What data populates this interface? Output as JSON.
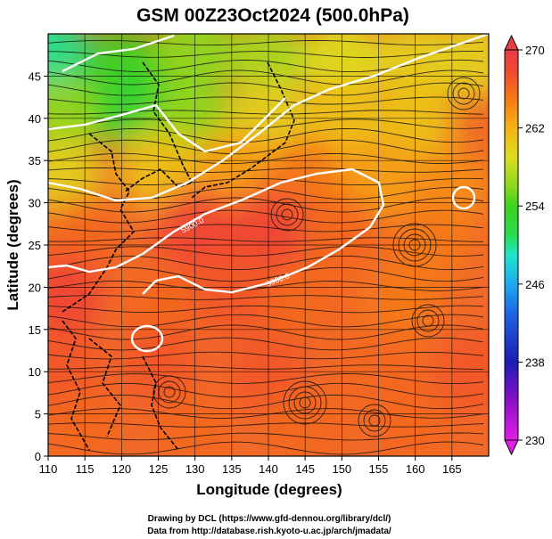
{
  "chart_data": {
    "type": "heatmap",
    "title": "GSM 00Z23Oct2024 (500.0hPa)",
    "xlabel": "Longitude (degrees)",
    "ylabel": "Latitude  (degrees)",
    "xlim": [
      110,
      170
    ],
    "ylim": [
      0,
      50
    ],
    "x_ticks": [
      110,
      115,
      120,
      125,
      130,
      135,
      140,
      145,
      150,
      155,
      160,
      165
    ],
    "y_ticks": [
      0,
      5,
      10,
      15,
      20,
      25,
      30,
      35,
      40,
      45
    ],
    "grid": true,
    "colorbar": {
      "ticks": [
        230,
        238,
        246,
        254,
        262,
        270
      ],
      "range": [
        230,
        270
      ],
      "stops": [
        {
          "v": 230,
          "c": "#e21ee6"
        },
        {
          "v": 234,
          "c": "#8c10c8"
        },
        {
          "v": 238,
          "c": "#1c1cb4"
        },
        {
          "v": 243,
          "c": "#1e64e6"
        },
        {
          "v": 246,
          "c": "#1eaaf0"
        },
        {
          "v": 249,
          "c": "#1ee6c8"
        },
        {
          "v": 251,
          "c": "#28dc50"
        },
        {
          "v": 254,
          "c": "#3cd21e"
        },
        {
          "v": 256,
          "c": "#8cd81e"
        },
        {
          "v": 259,
          "c": "#dcdc1e"
        },
        {
          "v": 262,
          "c": "#f5b414"
        },
        {
          "v": 265,
          "c": "#f57814"
        },
        {
          "v": 268,
          "c": "#f04632"
        },
        {
          "v": 270,
          "c": "#e63c46"
        }
      ]
    },
    "field_samples": [
      {
        "lon": 110,
        "lat": 48,
        "value": 250
      },
      {
        "lon": 120,
        "lat": 46,
        "value": 254
      },
      {
        "lon": 130,
        "lat": 48,
        "value": 256
      },
      {
        "lon": 140,
        "lat": 47,
        "value": 257
      },
      {
        "lon": 150,
        "lat": 47,
        "value": 259
      },
      {
        "lon": 160,
        "lat": 47,
        "value": 260
      },
      {
        "lon": 168,
        "lat": 47,
        "value": 260
      },
      {
        "lon": 112,
        "lat": 40,
        "value": 256
      },
      {
        "lon": 122,
        "lat": 41,
        "value": 253
      },
      {
        "lon": 130,
        "lat": 40,
        "value": 256
      },
      {
        "lon": 140,
        "lat": 40,
        "value": 260
      },
      {
        "lon": 150,
        "lat": 40,
        "value": 261
      },
      {
        "lon": 160,
        "lat": 40,
        "value": 261
      },
      {
        "lon": 112,
        "lat": 33,
        "value": 260
      },
      {
        "lon": 125,
        "lat": 34,
        "value": 261
      },
      {
        "lon": 135,
        "lat": 34,
        "value": 263
      },
      {
        "lon": 145,
        "lat": 33,
        "value": 265
      },
      {
        "lon": 155,
        "lat": 33,
        "value": 263
      },
      {
        "lon": 165,
        "lat": 32,
        "value": 264
      },
      {
        "lon": 115,
        "lat": 26,
        "value": 266
      },
      {
        "lon": 130,
        "lat": 27,
        "value": 268
      },
      {
        "lon": 140,
        "lat": 27,
        "value": 268
      },
      {
        "lon": 150,
        "lat": 26,
        "value": 266
      },
      {
        "lon": 162,
        "lat": 25,
        "value": 265
      },
      {
        "lon": 112,
        "lat": 19,
        "value": 268
      },
      {
        "lon": 125,
        "lat": 18,
        "value": 266
      },
      {
        "lon": 135,
        "lat": 19,
        "value": 267
      },
      {
        "lon": 145,
        "lat": 18,
        "value": 266
      },
      {
        "lon": 158,
        "lat": 18,
        "value": 265
      },
      {
        "lon": 112,
        "lat": 10,
        "value": 267
      },
      {
        "lon": 125,
        "lat": 11,
        "value": 267
      },
      {
        "lon": 140,
        "lat": 10,
        "value": 267
      },
      {
        "lon": 155,
        "lat": 10,
        "value": 266
      },
      {
        "lon": 168,
        "lat": 10,
        "value": 267
      },
      {
        "lon": 115,
        "lat": 3,
        "value": 266
      },
      {
        "lon": 130,
        "lat": 3,
        "value": 266
      },
      {
        "lon": 145,
        "lat": 3,
        "value": 266
      },
      {
        "lon": 160,
        "lat": 3,
        "value": 266
      }
    ],
    "contour_labels": [
      "5900.0",
      "5900.0"
    ]
  },
  "footer": {
    "credit_line1": "Drawing by DCL (https://www.gfd-dennou.org/library/dcl/)",
    "credit_line2": "Data from http://database.rish.kyoto-u.ac.jp/arch/jmadata/"
  }
}
